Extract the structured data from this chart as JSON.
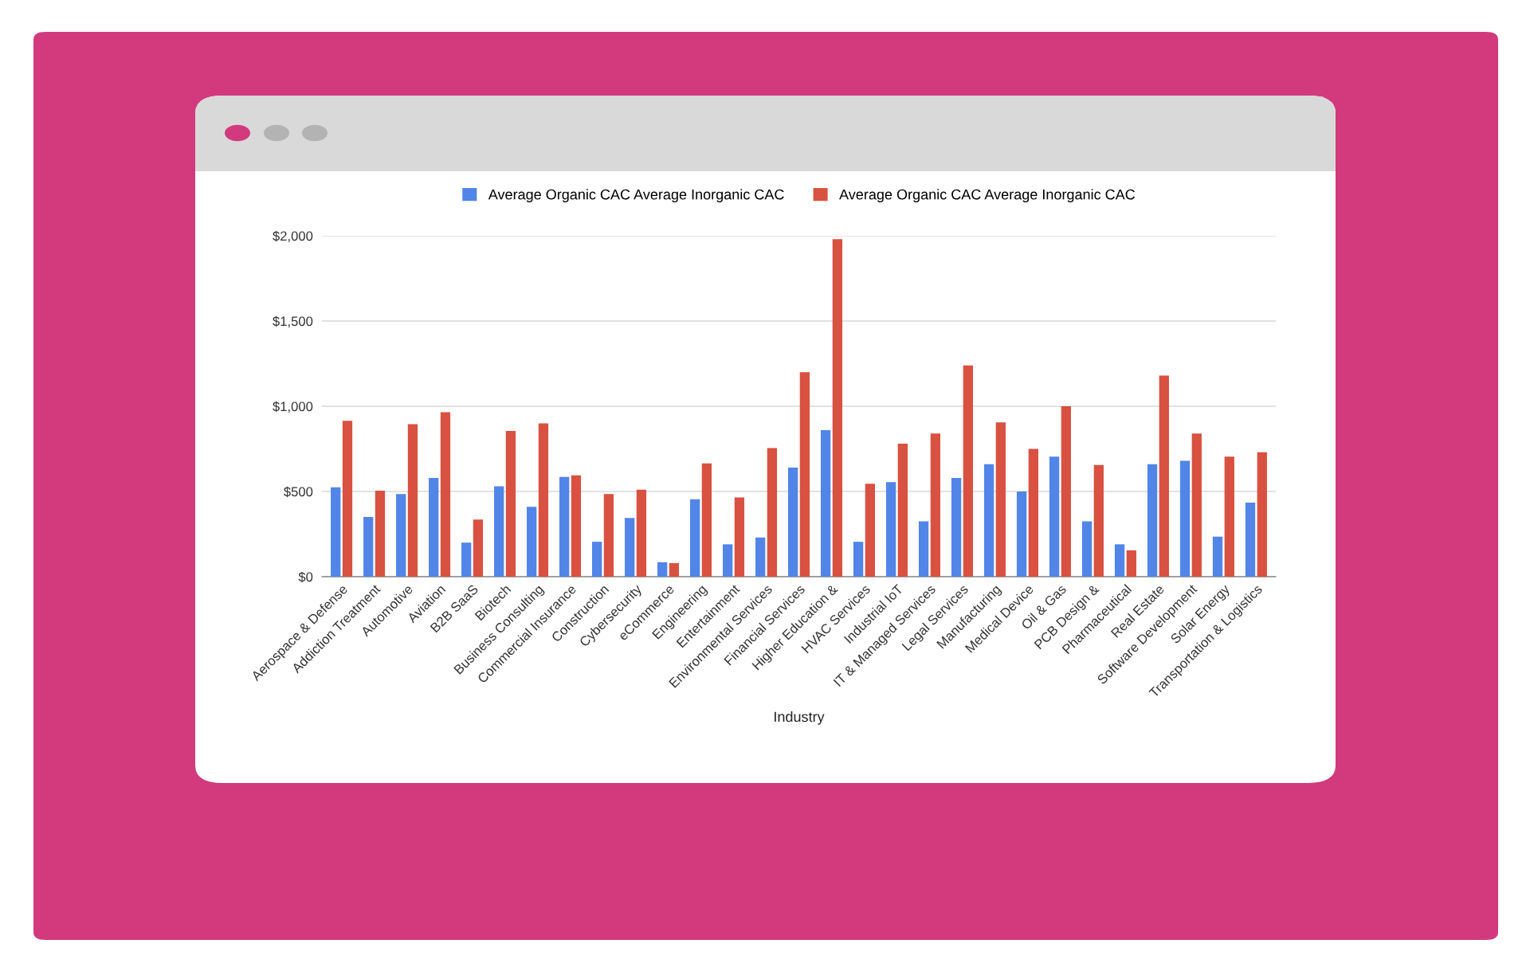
{
  "chart_data": {
    "type": "bar",
    "xlabel": "Industry",
    "categories": [
      "Aerospace & Defense",
      "Addiction Treatment",
      "Automotive",
      "Aviation",
      "B2B SaaS",
      "Biotech",
      "Business Consulting",
      "Commercial Insurance",
      "Construction",
      "Cybersecurity",
      "eCommerce",
      "Engineering",
      "Entertainment",
      "Environmental Services",
      "Financial Services",
      "Higher Education &",
      "HVAC Services",
      "Industrial IoT",
      "IT & Managed Services",
      "Legal Services",
      "Manufacturing",
      "Medical Device",
      "Oil & Gas",
      "PCB Design &",
      "Pharmaceutical",
      "Real Estate",
      "Software Development",
      "Solar Energy",
      "Transportation & Logistics"
    ],
    "series": [
      {
        "name": "Average Organic CAC Average Inorganic CAC",
        "color": "#5185e8",
        "values": [
          525,
          350,
          485,
          580,
          200,
          530,
          410,
          585,
          205,
          345,
          85,
          455,
          190,
          230,
          640,
          860,
          205,
          555,
          325,
          580,
          660,
          500,
          705,
          325,
          190,
          660,
          680,
          235,
          435
        ]
      },
      {
        "name": "Average Organic CAC Average Inorganic CAC",
        "color": "#d95140",
        "values": [
          915,
          505,
          895,
          965,
          335,
          855,
          900,
          595,
          485,
          510,
          80,
          665,
          465,
          755,
          1200,
          1980,
          545,
          780,
          840,
          1240,
          905,
          750,
          1000,
          655,
          155,
          1180,
          840,
          705,
          730
        ]
      }
    ],
    "ylim": [
      0,
      2000
    ],
    "yticks": [
      {
        "value": 0,
        "label": "$0"
      },
      {
        "value": 500,
        "label": "$500"
      },
      {
        "value": 1000,
        "label": "$1,000"
      },
      {
        "value": 1500,
        "label": "$1,500"
      },
      {
        "value": 2000,
        "label": "$2,000"
      }
    ],
    "grid": "y",
    "legend": "top"
  }
}
